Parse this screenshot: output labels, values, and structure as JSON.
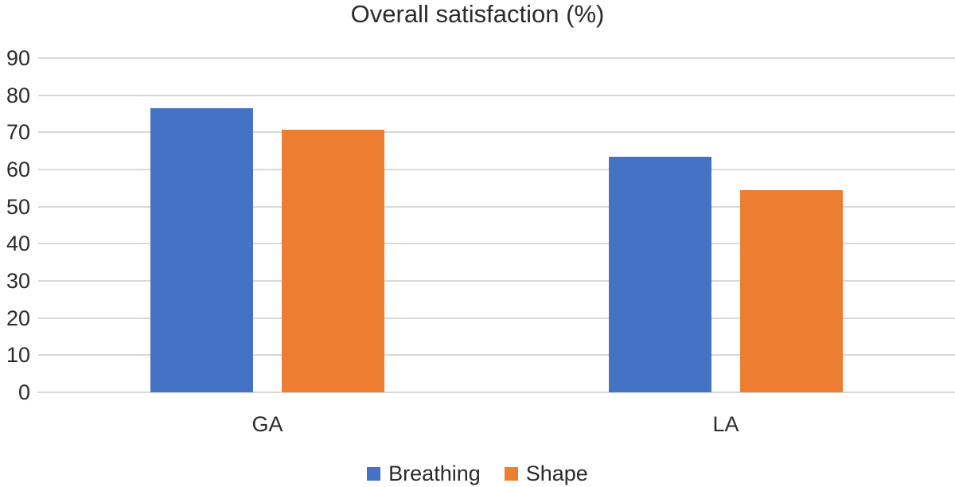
{
  "chart_data": {
    "type": "bar",
    "title": "Overall satisfaction (%)",
    "categories": [
      "GA",
      "LA"
    ],
    "series": [
      {
        "name": "Breathing",
        "color": "#4472C4",
        "values": [
          76.5,
          63.5
        ]
      },
      {
        "name": "Shape",
        "color": "#ED7D31",
        "values": [
          70.8,
          54.5
        ]
      }
    ],
    "xlabel": "",
    "ylabel": "",
    "ylim": [
      0,
      90
    ],
    "yticks": [
      0,
      10,
      20,
      30,
      40,
      50,
      60,
      70,
      80,
      90
    ],
    "grid": true,
    "legend_position": "bottom"
  },
  "colors": {
    "gridline": "#d9d9d9",
    "text": "#2b2b2b",
    "background": "#ffffff"
  }
}
